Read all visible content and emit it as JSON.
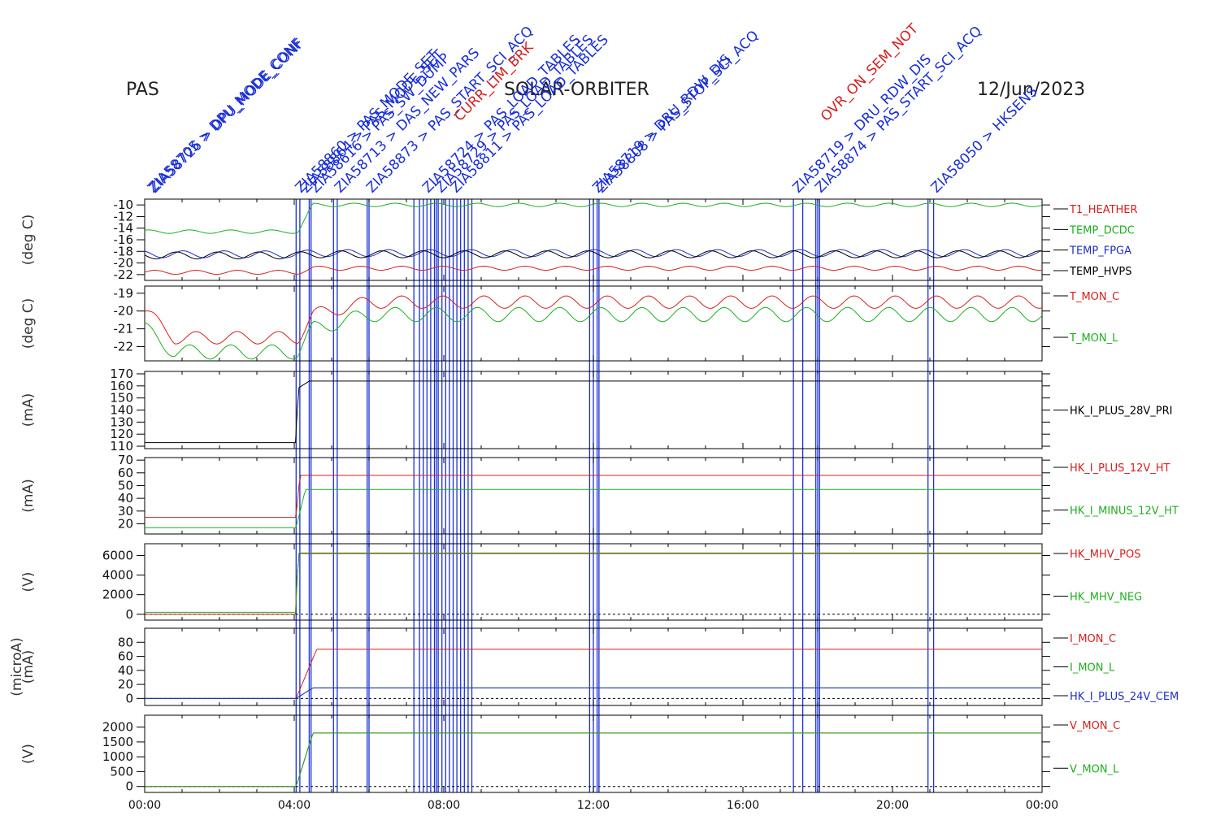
{
  "header": {
    "left": "PAS",
    "center": "SOLAR-ORBITER",
    "right": "12/Jun/2023"
  },
  "colors": {
    "red": "#d42020",
    "green": "#1fae1f",
    "blue": "#1f2fbf",
    "black": "#000000",
    "event": "#1a2fd6"
  },
  "x_ticks": [
    "00:00",
    "04:00",
    "08:00",
    "12:00",
    "16:00",
    "20:00",
    "00:00"
  ],
  "events": {
    "lines_hours": [
      4.05,
      4.15,
      4.4,
      4.45,
      5.05,
      5.15,
      5.95,
      6.0,
      7.2,
      7.35,
      7.45,
      7.55,
      7.65,
      7.75,
      7.8,
      7.85,
      7.95,
      8.05,
      8.15,
      8.25,
      8.35,
      8.45,
      8.55,
      8.65,
      8.75,
      11.9,
      12.0,
      12.1,
      12.15,
      17.35,
      17.6,
      17.95,
      18.0,
      18.05,
      20.95,
      21.1
    ],
    "labels": [
      {
        "hour": 0.1,
        "text": "ZIA58705 > DPU_MODE_CONF"
      },
      {
        "hour": 0.15,
        "text": "ZIA58726 > DPU_MODE_CONF"
      },
      {
        "hour": 4.05,
        "text": "ZIA58860 > PAS_MODE_SET"
      },
      {
        "hour": 4.2,
        "text": "ZIA58864 > PAS_MODE_SET"
      },
      {
        "hour": 4.45,
        "text": "ZIA58616 > PAS_SW_DUMP"
      },
      {
        "hour": 5.1,
        "text": "ZIA58713 > DAS_NEW_PARS"
      },
      {
        "hour": 5.95,
        "text": "ZIA58873 > PAS_START_SCI_ACQ"
      },
      {
        "hour": 7.45,
        "text": "ZIA58724 > PAS_LOAD_TABLES"
      },
      {
        "hour": 7.8,
        "text": "ZIA58729 > PAS_LOAD_TABLES"
      },
      {
        "hour": 8.2,
        "text": "ZIA58811 > PAS_LOAD_TABLES"
      },
      {
        "hour": 12.0,
        "text": "ZIA58719 > DRU_RDW_DIS"
      },
      {
        "hour": 12.1,
        "text": "ZIA58808 > PAS_STOP_SCI_ACQ"
      },
      {
        "hour": 17.35,
        "text": "ZIA58719 > DRU_RDW_DIS"
      },
      {
        "hour": 17.95,
        "text": "ZIA58874 > PAS_START_SCI_ACQ"
      },
      {
        "hour": 21.05,
        "text": "ZIA58050 > HKSENS"
      }
    ],
    "alarm_labels": [
      {
        "hour": 8.3,
        "text": "CURR_LIM_BRK"
      },
      {
        "hour": 18.1,
        "text": "OVR_ON_SEM_NOT"
      }
    ]
  },
  "chart_data": [
    {
      "type": "line",
      "ylabel": "(deg C)",
      "ylim": [
        -23,
        -9
      ],
      "yticks": [
        -10,
        -12,
        -14,
        -16,
        -18,
        -20,
        -22
      ],
      "series": [
        {
          "name": "T1_HEATHER",
          "color": "red",
          "values_hours": [
            0,
            4.1,
            4.5,
            24
          ],
          "values": [
            -21.6,
            -21.6,
            -20.9,
            -20.9
          ],
          "amp": 0.35
        },
        {
          "name": "TEMP_DCDC",
          "color": "green",
          "values_hours": [
            0,
            4.1,
            4.5,
            24
          ],
          "values": [
            -14.6,
            -14.6,
            -10,
            -10
          ],
          "amp": 0.3
        },
        {
          "name": "TEMP_FPGA",
          "color": "blue",
          "values_hours": [
            0,
            4.1,
            4.5,
            24
          ],
          "values": [
            -18.5,
            -18.5,
            -18.3,
            -18.3
          ],
          "amp": 0.6
        },
        {
          "name": "TEMP_HVPS",
          "color": "black",
          "values_hours": [
            0,
            4.1,
            4.5,
            24
          ],
          "values": [
            -18.7,
            -18.7,
            -18.5,
            -18.5
          ],
          "amp": 0.6
        }
      ]
    },
    {
      "type": "line",
      "ylabel": "(deg C)",
      "ylim": [
        -22.8,
        -18.6
      ],
      "yticks": [
        -19,
        -20,
        -21,
        -22
      ],
      "series": [
        {
          "name": "T_MON_C",
          "color": "red",
          "values_hours": [
            0,
            0.8,
            4.1,
            4.5,
            6,
            24
          ],
          "values": [
            -20.0,
            -21.5,
            -21.5,
            -20.2,
            -19.5,
            -19.5
          ],
          "amp": 0.35
        },
        {
          "name": "T_MON_L",
          "color": "green",
          "values_hours": [
            0,
            0.8,
            4.1,
            4.5,
            6,
            24
          ],
          "values": [
            -21.0,
            -22.3,
            -22.3,
            -21.0,
            -20.2,
            -20.2
          ],
          "amp": 0.4
        }
      ]
    },
    {
      "type": "line",
      "ylabel": "(mA)",
      "ylim": [
        108,
        172
      ],
      "yticks": [
        110,
        120,
        130,
        140,
        150,
        160,
        170
      ],
      "series": [
        {
          "name": "HK_I_PLUS_28V_PRI",
          "color": "black",
          "values_hours": [
            0,
            4.05,
            4.1,
            4.4,
            24
          ],
          "values": [
            113,
            113,
            158,
            164,
            164
          ],
          "amp": 0
        }
      ]
    },
    {
      "type": "line",
      "ylabel": "(mA)",
      "ylim": [
        12,
        72
      ],
      "yticks": [
        20,
        30,
        40,
        50,
        60,
        70
      ],
      "series": [
        {
          "name": "HK_I_PLUS_12V_HT",
          "color": "red",
          "values_hours": [
            0,
            4.05,
            4.15,
            24
          ],
          "values": [
            25,
            25,
            58,
            58
          ],
          "amp": 0
        },
        {
          "name": "HK_I_MINUS_12V_HT",
          "color": "green",
          "values_hours": [
            0,
            4.05,
            4.3,
            24
          ],
          "values": [
            17,
            17,
            47,
            47
          ],
          "amp": 0
        }
      ]
    },
    {
      "type": "line",
      "ylabel": "(V)",
      "ylim": [
        -600,
        7200
      ],
      "yticks": [
        0,
        2000,
        4000,
        6000
      ],
      "series": [
        {
          "name": "HK_MHV_POS",
          "color": "red",
          "values_hours": [
            0,
            4.05,
            4.1,
            24
          ],
          "values": [
            0,
            0,
            6200,
            6200
          ],
          "amp": 0
        },
        {
          "name": "HK_MHV_NEG",
          "color": "green",
          "values_hours": [
            0,
            4.05,
            4.1,
            24
          ],
          "values": [
            200,
            200,
            6250,
            6250
          ],
          "amp": 0
        }
      ]
    },
    {
      "type": "line",
      "ylabel": "(mA)",
      "ylabel2": "(microA)",
      "ylim": [
        -10,
        100
      ],
      "yticks": [
        0,
        20,
        40,
        60,
        80
      ],
      "series": [
        {
          "name": "I_MON_C",
          "color": "red",
          "values_hours": [
            0,
            4.05,
            4.6,
            24
          ],
          "values": [
            0,
            0,
            70,
            70
          ],
          "amp": 0
        },
        {
          "name": "I_MON_L",
          "color": "green",
          "values_hours": [
            0,
            4.05,
            4.5,
            24
          ],
          "values": [
            0,
            0,
            15,
            15
          ],
          "amp": 0
        },
        {
          "name": "HK_I_PLUS_24V_CEM",
          "color": "blue",
          "values_hours": [
            0,
            4.05,
            4.5,
            24
          ],
          "values": [
            0,
            0,
            15,
            15
          ],
          "amp": 0
        }
      ]
    },
    {
      "type": "line",
      "ylabel": "(V)",
      "ylim": [
        -200,
        2400
      ],
      "yticks": [
        0,
        500,
        1000,
        1500,
        2000
      ],
      "series": [
        {
          "name": "V_MON_C",
          "color": "red",
          "values_hours": [
            0,
            4.05,
            4.5,
            24
          ],
          "values": [
            0,
            0,
            1800,
            1800
          ],
          "amp": 0
        },
        {
          "name": "V_MON_L",
          "color": "green",
          "values_hours": [
            0,
            4.05,
            4.5,
            24
          ],
          "values": [
            0,
            0,
            1800,
            1800
          ],
          "amp": 0
        }
      ]
    }
  ]
}
